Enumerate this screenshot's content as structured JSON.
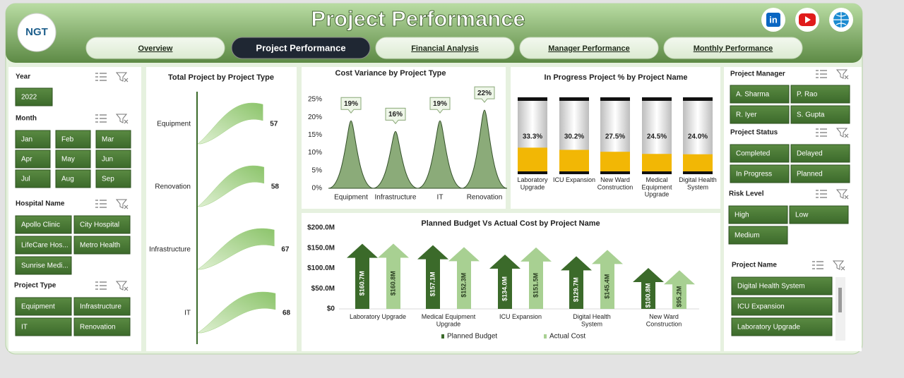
{
  "header": {
    "logo": "NGT",
    "title": "Project Performance",
    "linkedin": "in"
  },
  "nav": [
    "Overview",
    "Project Performance",
    "Financial Analysis",
    "Manager Performance",
    "Monthly Performance"
  ],
  "slicers": [
    {
      "title": "Year",
      "items": [
        "2022"
      ]
    },
    {
      "title": "Month",
      "items": [
        "Jan",
        "Feb",
        "Mar",
        "Apr",
        "May",
        "Jun",
        "Jul",
        "Aug",
        "Sep"
      ]
    },
    {
      "title": "Hospital Name",
      "items": [
        "Apollo Clinic",
        "City Hospital",
        "LifeCare Hos...",
        "Metro Health",
        "Sunrise Medi..."
      ]
    },
    {
      "title": "Project Type",
      "items": [
        "Equipment",
        "Infrastructure",
        "IT",
        "Renovation"
      ]
    },
    {
      "title": "Project Manager",
      "items": [
        "A. Sharma",
        "P. Rao",
        "R. Iyer",
        "S. Gupta"
      ]
    },
    {
      "title": "Project Status",
      "items": [
        "Completed",
        "Delayed",
        "In Progress",
        "Planned"
      ]
    },
    {
      "title": "Risk Level",
      "items": [
        "High",
        "Low",
        "Medium"
      ]
    },
    {
      "title": "Project Name",
      "items": [
        "Digital Health System",
        "ICU Expansion",
        "Laboratory Upgrade"
      ]
    }
  ],
  "chart_data": [
    {
      "type": "flag",
      "title": "Total Project by Project Type",
      "categories": [
        "Equipment",
        "Renovation",
        "Infrastructure",
        "IT"
      ],
      "values": [
        57,
        58,
        67,
        68
      ],
      "color": "#9fcf80"
    },
    {
      "type": "peak",
      "title": "Cost Variance by Project Type",
      "categories": [
        "Equipment",
        "Infrastructure",
        "IT",
        "Renovation"
      ],
      "values": [
        19,
        16,
        19,
        22
      ],
      "value_labels": [
        "19%",
        "16%",
        "19%",
        "22%"
      ],
      "color": "#8bab79",
      "ylim": [
        0,
        25
      ],
      "yticks": [
        {
          "value": 0,
          "label": "0%"
        },
        {
          "value": 5,
          "label": "5%"
        },
        {
          "value": 10,
          "label": "10%"
        },
        {
          "value": 15,
          "label": "15%"
        },
        {
          "value": 20,
          "label": "20%"
        },
        {
          "value": 25,
          "label": "25%"
        }
      ]
    },
    {
      "type": "cylinder",
      "title": "In Progress Project % by Project Name",
      "categories": [
        "Laboratory Upgrade",
        "ICU Expansion",
        "New Ward Construction",
        "Medical Equipment Upgrade",
        "Digital Health System"
      ],
      "values": [
        33.3,
        30.2,
        27.5,
        24.5,
        24.0
      ],
      "value_labels": [
        "33.3%",
        "30.2%",
        "27.5%",
        "24.5%",
        "24.0%"
      ],
      "color": "#f2b705",
      "ylim": [
        0,
        100
      ]
    },
    {
      "type": "arrow",
      "title": "Planned Budget Vs Actual Cost by Project Name",
      "categories": [
        "Laboratory Upgrade",
        "Medical Equipment Upgrade",
        "ICU Expansion",
        "Digital Health System",
        "New Ward Construction"
      ],
      "series": [
        {
          "name": "Planned Budget",
          "color": "#3b6a2a",
          "values": [
            160700000,
            157100000,
            134000000,
            129700000,
            100800000
          ],
          "value_labels": [
            "$160.7M",
            "$157.1M",
            "$134.0M",
            "$129.7M",
            "$100.8M"
          ]
        },
        {
          "name": "Actual Cost",
          "color": "#a8d092",
          "values": [
            160800000,
            152300000,
            151500000,
            145400000,
            95200000
          ],
          "value_labels": [
            "$160.8M",
            "$152.3M",
            "$151.5M",
            "$145.4M",
            "$95.2M"
          ]
        }
      ],
      "ylim": [
        0,
        200000000
      ],
      "yticks": [
        {
          "value": 0,
          "label": "$0"
        },
        {
          "value": 50000000,
          "label": "$50.0M"
        },
        {
          "value": 100000000,
          "label": "$100.0M"
        },
        {
          "value": 150000000,
          "label": "$150.0M"
        },
        {
          "value": 200000000,
          "label": "$200.0M"
        }
      ],
      "legend": "bottom"
    }
  ]
}
